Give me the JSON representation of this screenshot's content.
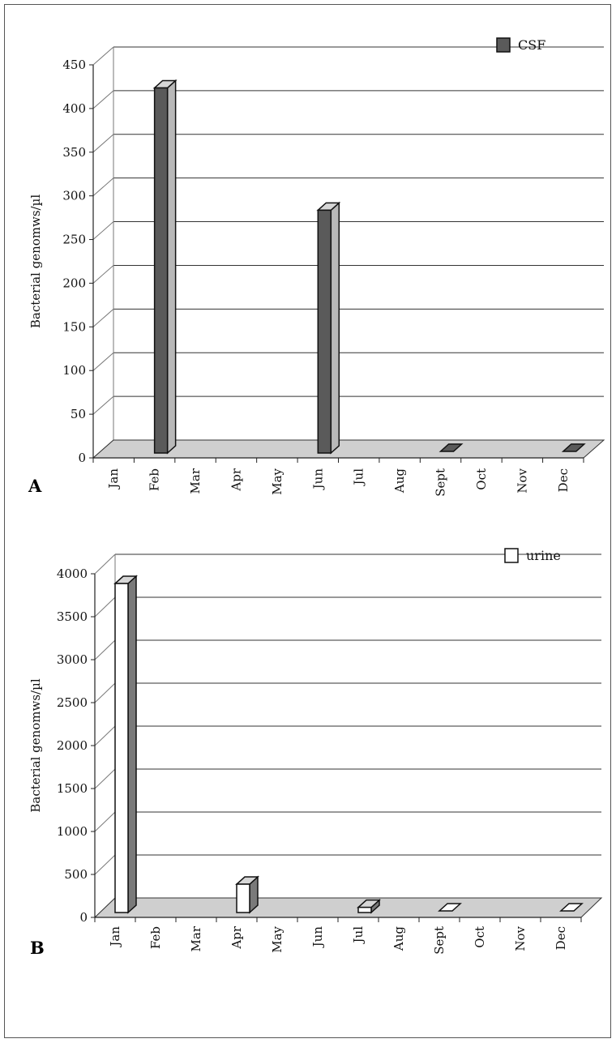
{
  "chart_data": [
    {
      "type": "bar",
      "panel_label": "A",
      "categories": [
        "Jan",
        "Feb",
        "Mar",
        "Apr",
        "May",
        "Jun",
        "Jul",
        "Aug",
        "Sept",
        "Oct",
        "Nov",
        "Dec"
      ],
      "series": [
        {
          "name": "CSF",
          "values": [
            0,
            418,
            0,
            0,
            0,
            278,
            0,
            0,
            2,
            0,
            0,
            2
          ]
        }
      ],
      "ylabel": "Bacterial genomws/µl",
      "xlabel": "",
      "ylim": [
        0,
        450
      ],
      "yticks": [
        0,
        50,
        100,
        150,
        200,
        250,
        300,
        350,
        400,
        450
      ],
      "grid": true,
      "legend_position": "top-right",
      "colors": {
        "front": "#5a5a5a",
        "side": "#b8b8b8",
        "top": "#d6d6d6",
        "floor": "#cfcfcf"
      }
    },
    {
      "type": "bar",
      "panel_label": "B",
      "categories": [
        "Jan",
        "Feb",
        "Mar",
        "Apr",
        "May",
        "Jun",
        "Jul",
        "Aug",
        "Sept",
        "Oct",
        "Nov",
        "Dec"
      ],
      "series": [
        {
          "name": "urine",
          "values": [
            3830,
            0,
            0,
            330,
            0,
            0,
            60,
            0,
            2,
            0,
            0,
            2
          ]
        }
      ],
      "ylabel": "Bacterial genomws/µl",
      "xlabel": "",
      "ylim": [
        0,
        4000
      ],
      "yticks": [
        0,
        500,
        1000,
        1500,
        2000,
        2500,
        3000,
        3500,
        4000
      ],
      "grid": true,
      "legend_position": "top-right",
      "colors": {
        "front": "#ffffff",
        "side": "#7a7a7a",
        "top": "#d6d6d6",
        "floor": "#cfcfcf"
      }
    }
  ]
}
